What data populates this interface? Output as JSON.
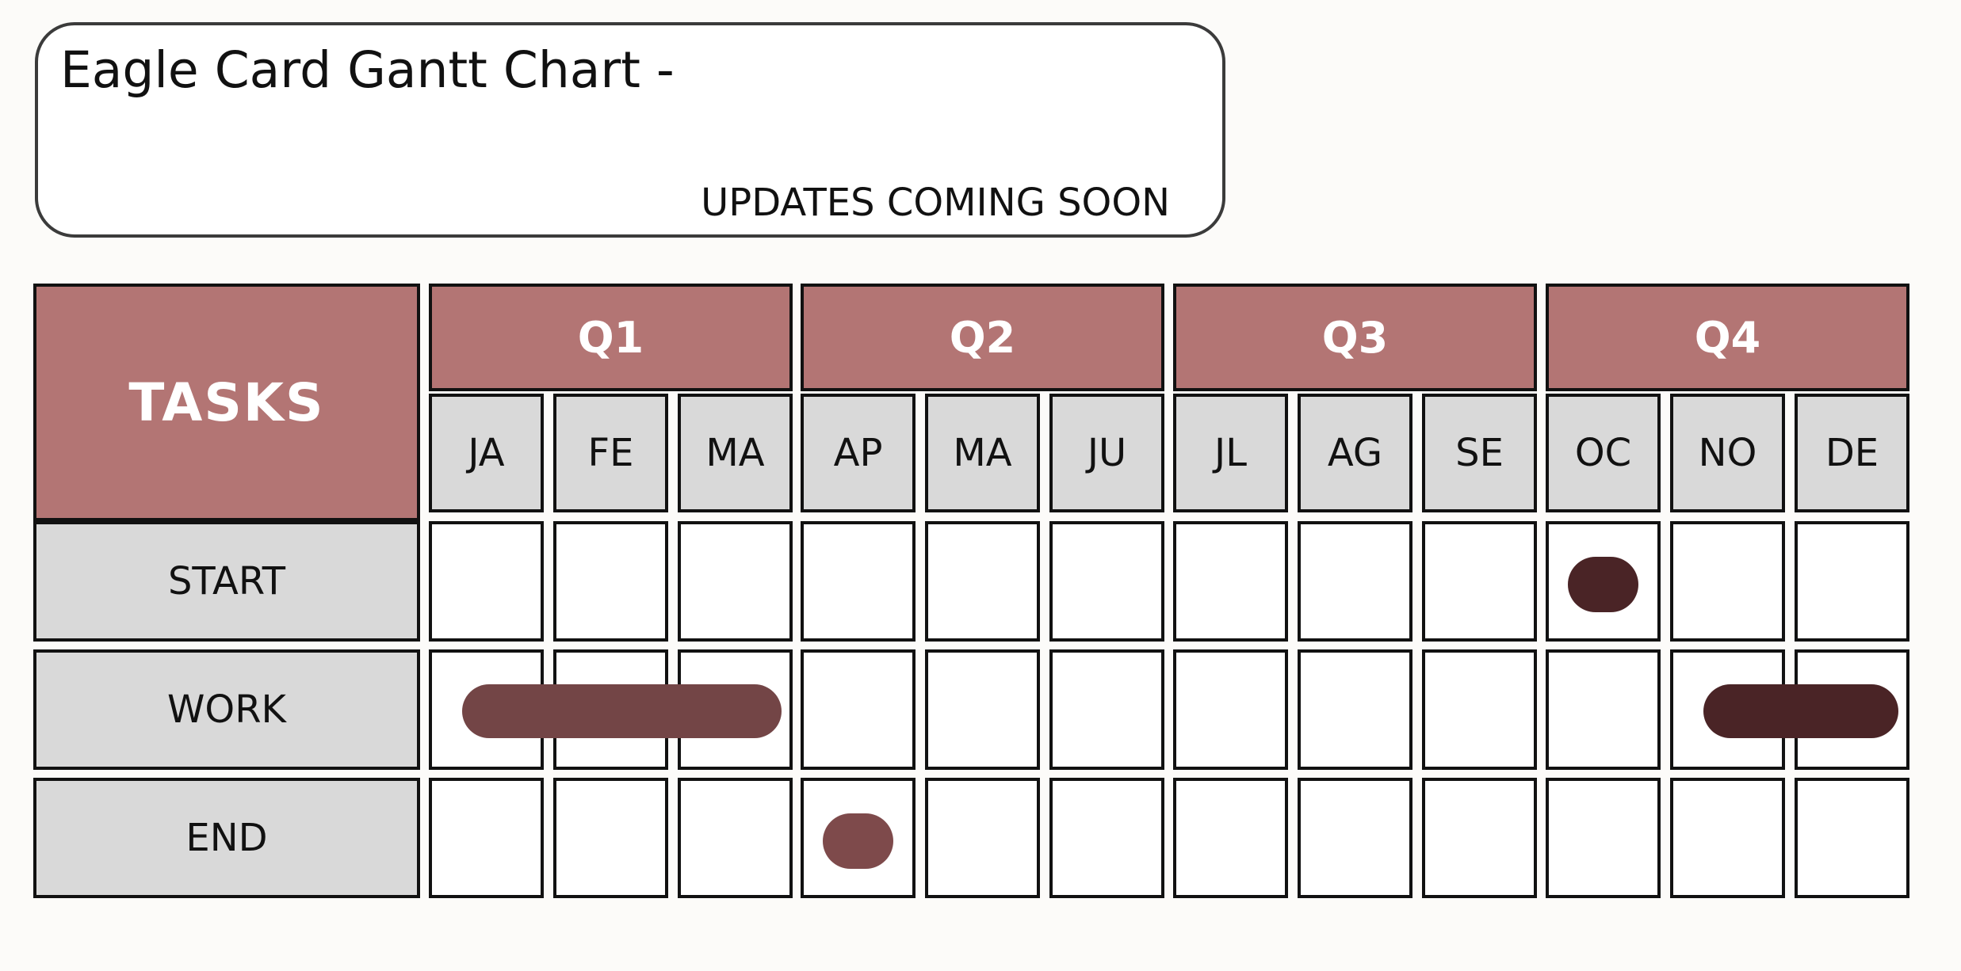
{
  "header": {
    "title": "Eagle Card Gantt Chart -",
    "subtitle": "UPDATES COMING SOON"
  },
  "chart_data": {
    "type": "gantt",
    "tasks_label": "TASKS",
    "quarters": [
      "Q1",
      "Q2",
      "Q3",
      "Q4"
    ],
    "months": [
      "JA",
      "FE",
      "MA",
      "AP",
      "MA",
      "JU",
      "JL",
      "AG",
      "SE",
      "OC",
      "NO",
      "DE"
    ],
    "rows": [
      {
        "label": "START",
        "bars": [
          {
            "start": 9,
            "end": 9,
            "color": "#4a2426"
          }
        ]
      },
      {
        "label": "WORK",
        "bars": [
          {
            "start": 0,
            "end": 2,
            "color": "#734546"
          },
          {
            "start": 10,
            "end": 11,
            "color": "#4a2426"
          }
        ]
      },
      {
        "label": "END",
        "bars": [
          {
            "start": 3,
            "end": 3,
            "color": "#7e4a4b"
          }
        ]
      }
    ]
  }
}
